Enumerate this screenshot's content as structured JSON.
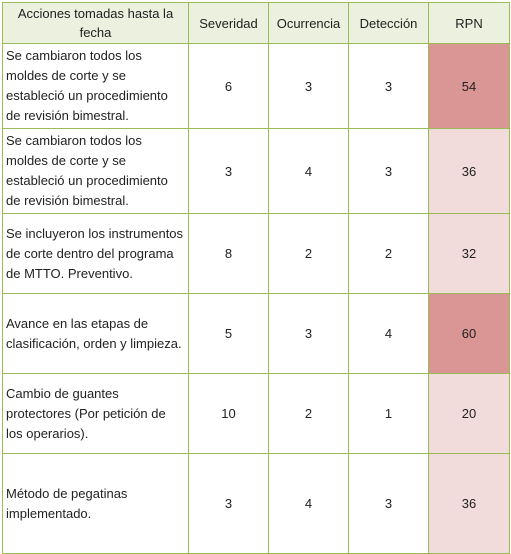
{
  "colors": {
    "border": "#9bbb59",
    "header_bg": "#ebf1de",
    "rpn_high": "#da9694",
    "rpn_low": "#f2dcdb"
  },
  "table": {
    "headers": [
      "Acciones tomadas hasta la fecha",
      "Severidad",
      "Ocurrencia",
      "Detección",
      "RPN"
    ],
    "rows": [
      {
        "action": "Se cambiaron todos los moldes de corte y se estableció un procedimiento de revisión bimestral.",
        "severidad": "6",
        "ocurrencia": "3",
        "deteccion": "3",
        "rpn": "54",
        "level": "high"
      },
      {
        "action": "Se cambiaron todos los moldes de corte y se estableció un procedimiento de revisión bimestral.",
        "severidad": "3",
        "ocurrencia": "4",
        "deteccion": "3",
        "rpn": "36",
        "level": "low"
      },
      {
        "action": "Se incluyeron los instrumentos de corte dentro del programa de MTTO. Preventivo.",
        "severidad": "8",
        "ocurrencia": "2",
        "deteccion": "2",
        "rpn": "32",
        "level": "low"
      },
      {
        "action": "Avance en las etapas de clasificación, orden y limpieza.",
        "severidad": "5",
        "ocurrencia": "3",
        "deteccion": "4",
        "rpn": "60",
        "level": "high"
      },
      {
        "action": "Cambio de guantes protectores (Por petición de los operarios).",
        "severidad": "10",
        "ocurrencia": "2",
        "deteccion": "1",
        "rpn": "20",
        "level": "low"
      },
      {
        "action": "Método de pegatinas implementado.",
        "severidad": "3",
        "ocurrencia": "4",
        "deteccion": "3",
        "rpn": "36",
        "level": "low"
      }
    ]
  }
}
